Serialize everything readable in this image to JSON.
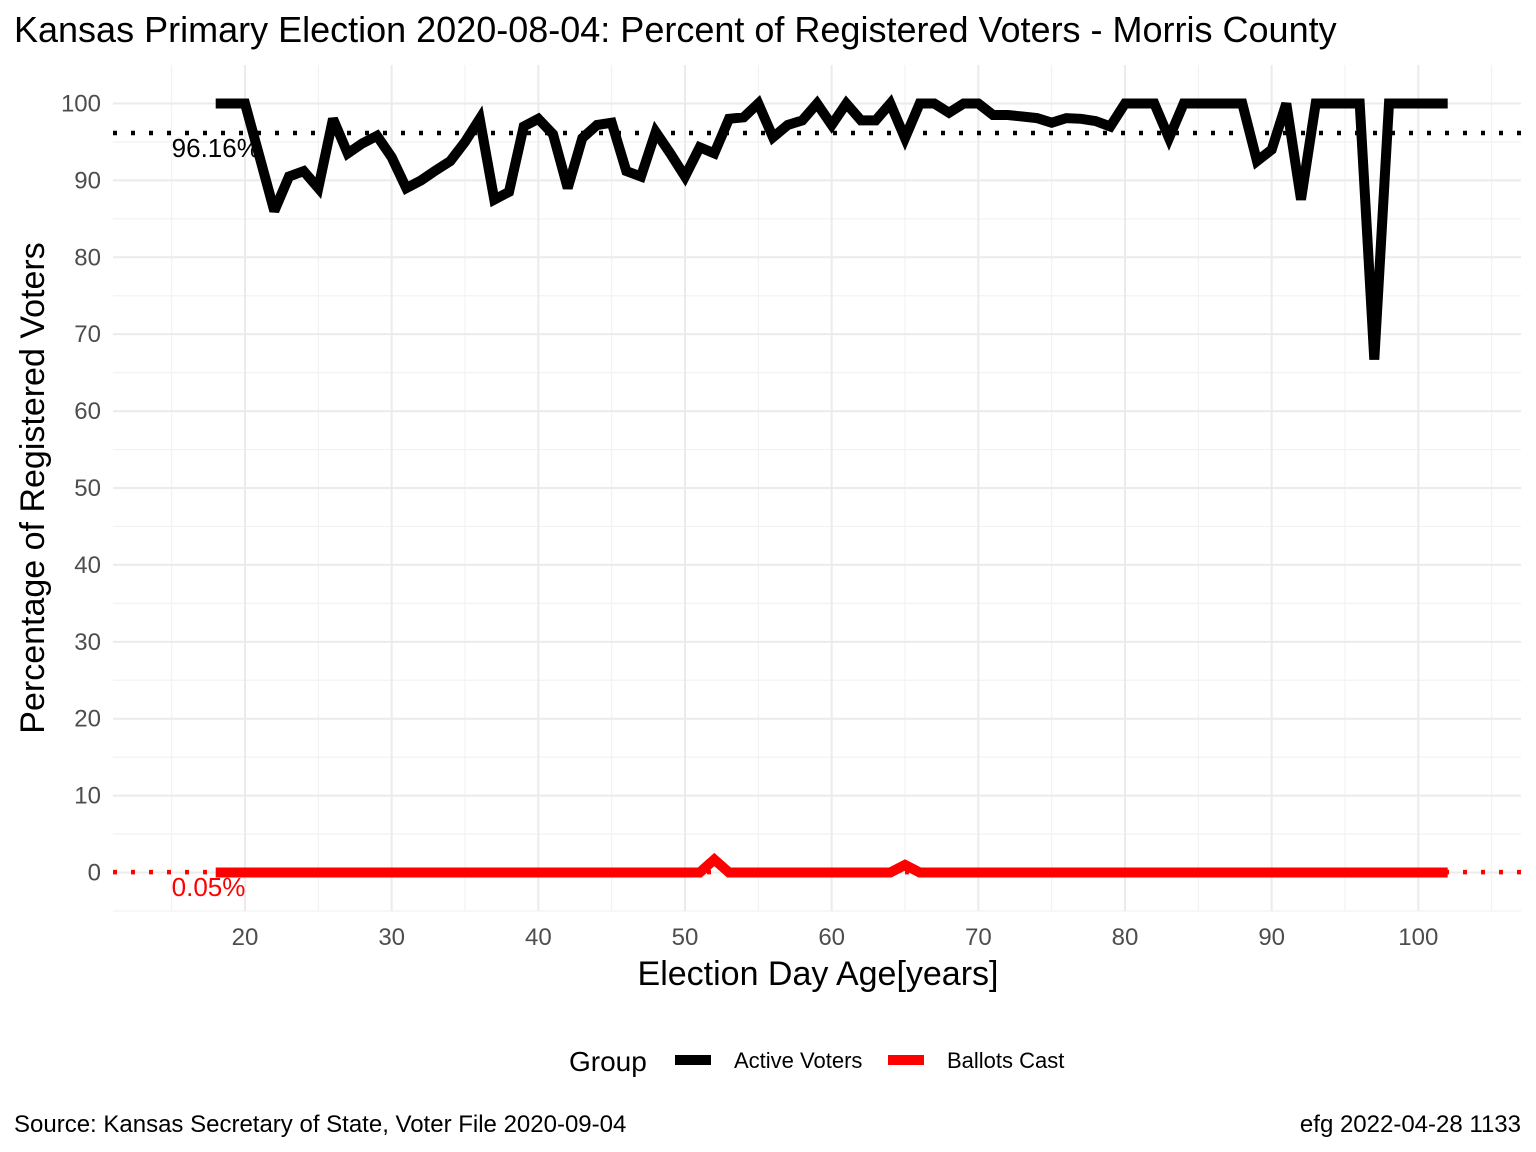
{
  "chart_data": {
    "type": "line",
    "title": "Kansas Primary Election 2020-08-04:  Percent of Registered Voters - Morris County",
    "xlabel": "Election Day Age[years]",
    "ylabel": "Percentage of Registered Voters",
    "xlim": [
      11,
      107
    ],
    "ylim": [
      -5,
      105
    ],
    "x_ticks": [
      20,
      30,
      40,
      50,
      60,
      70,
      80,
      90,
      100
    ],
    "y_ticks": [
      0,
      10,
      20,
      30,
      40,
      50,
      60,
      70,
      80,
      90,
      100
    ],
    "grid": true,
    "legend": {
      "title": "Group",
      "position": "bottom"
    },
    "series": [
      {
        "name": "Active Voters",
        "color": "#000000",
        "x": [
          18,
          19,
          20,
          21,
          22,
          23,
          24,
          25,
          26,
          27,
          28,
          29,
          30,
          31,
          32,
          33,
          34,
          35,
          36,
          37,
          38,
          39,
          40,
          41,
          42,
          43,
          44,
          45,
          46,
          47,
          48,
          49,
          50,
          51,
          52,
          53,
          54,
          55,
          56,
          57,
          58,
          59,
          60,
          61,
          62,
          63,
          64,
          65,
          66,
          67,
          68,
          69,
          70,
          71,
          72,
          73,
          74,
          75,
          76,
          77,
          78,
          79,
          80,
          81,
          82,
          83,
          84,
          85,
          86,
          87,
          88,
          89,
          90,
          91,
          92,
          93,
          94,
          95,
          96,
          97,
          98,
          99,
          100,
          101,
          102
        ],
        "values": [
          100,
          100,
          100,
          93,
          86,
          90.5,
          91.2,
          89,
          98,
          93.5,
          94.8,
          95.8,
          93,
          89,
          90,
          91.3,
          92.5,
          95,
          98,
          87.5,
          88.5,
          97,
          98,
          96,
          89,
          95.5,
          97.2,
          97.5,
          91.2,
          90.5,
          96.3,
          93.5,
          90.5,
          94.3,
          93.5,
          98,
          98.2,
          100,
          95.6,
          97.2,
          97.8,
          100,
          97.2,
          100,
          97.8,
          97.8,
          100,
          95.5,
          100,
          100,
          98.8,
          100,
          100,
          98.5,
          98.5,
          98.3,
          98.1,
          97.5,
          98.1,
          98,
          97.7,
          97,
          100,
          100,
          100,
          95.5,
          100,
          100,
          100,
          100,
          100,
          92.5,
          94,
          100,
          87.5,
          100,
          100,
          100,
          100,
          66.7,
          100,
          100,
          100,
          100,
          100
        ]
      },
      {
        "name": "Ballots Cast",
        "color": "#ff0000",
        "x": [
          18,
          19,
          20,
          21,
          22,
          23,
          24,
          25,
          26,
          27,
          28,
          29,
          30,
          31,
          32,
          33,
          34,
          35,
          36,
          37,
          38,
          39,
          40,
          41,
          42,
          43,
          44,
          45,
          46,
          47,
          48,
          49,
          50,
          51,
          52,
          53,
          54,
          55,
          56,
          57,
          58,
          59,
          60,
          61,
          62,
          63,
          64,
          65,
          66,
          67,
          68,
          69,
          70,
          71,
          72,
          73,
          74,
          75,
          76,
          77,
          78,
          79,
          80,
          81,
          82,
          83,
          84,
          85,
          86,
          87,
          88,
          89,
          90,
          91,
          92,
          93,
          94,
          95,
          96,
          97,
          98,
          99,
          100,
          101,
          102
        ],
        "values": [
          0,
          0,
          0,
          0,
          0,
          0,
          0,
          0,
          0,
          0,
          0,
          0,
          0,
          0,
          0,
          0,
          0,
          0,
          0,
          0,
          0,
          0,
          0,
          0,
          0,
          0,
          0,
          0,
          0,
          0,
          0,
          0,
          0,
          0,
          1.7,
          0,
          0,
          0,
          0,
          0,
          0,
          0,
          0,
          0,
          0,
          0,
          0,
          1.0,
          0,
          0,
          0,
          0,
          0,
          0,
          0,
          0,
          0,
          0,
          0,
          0,
          0,
          0,
          0,
          0,
          0,
          0,
          0,
          0,
          0,
          0,
          0,
          0,
          0,
          0,
          0,
          0,
          0,
          0,
          0,
          0,
          0,
          0,
          0,
          0,
          0
        ]
      }
    ],
    "reference_lines": [
      {
        "label": "96.16%",
        "value": 96.16,
        "color": "#000000"
      },
      {
        "label": "0.05%",
        "value": 0.05,
        "color": "#ff0000"
      }
    ]
  },
  "footer": {
    "source": "Source:  Kansas Secretary of State, Voter File  2020-09-04",
    "credit": "efg 2022-04-28 1133"
  }
}
